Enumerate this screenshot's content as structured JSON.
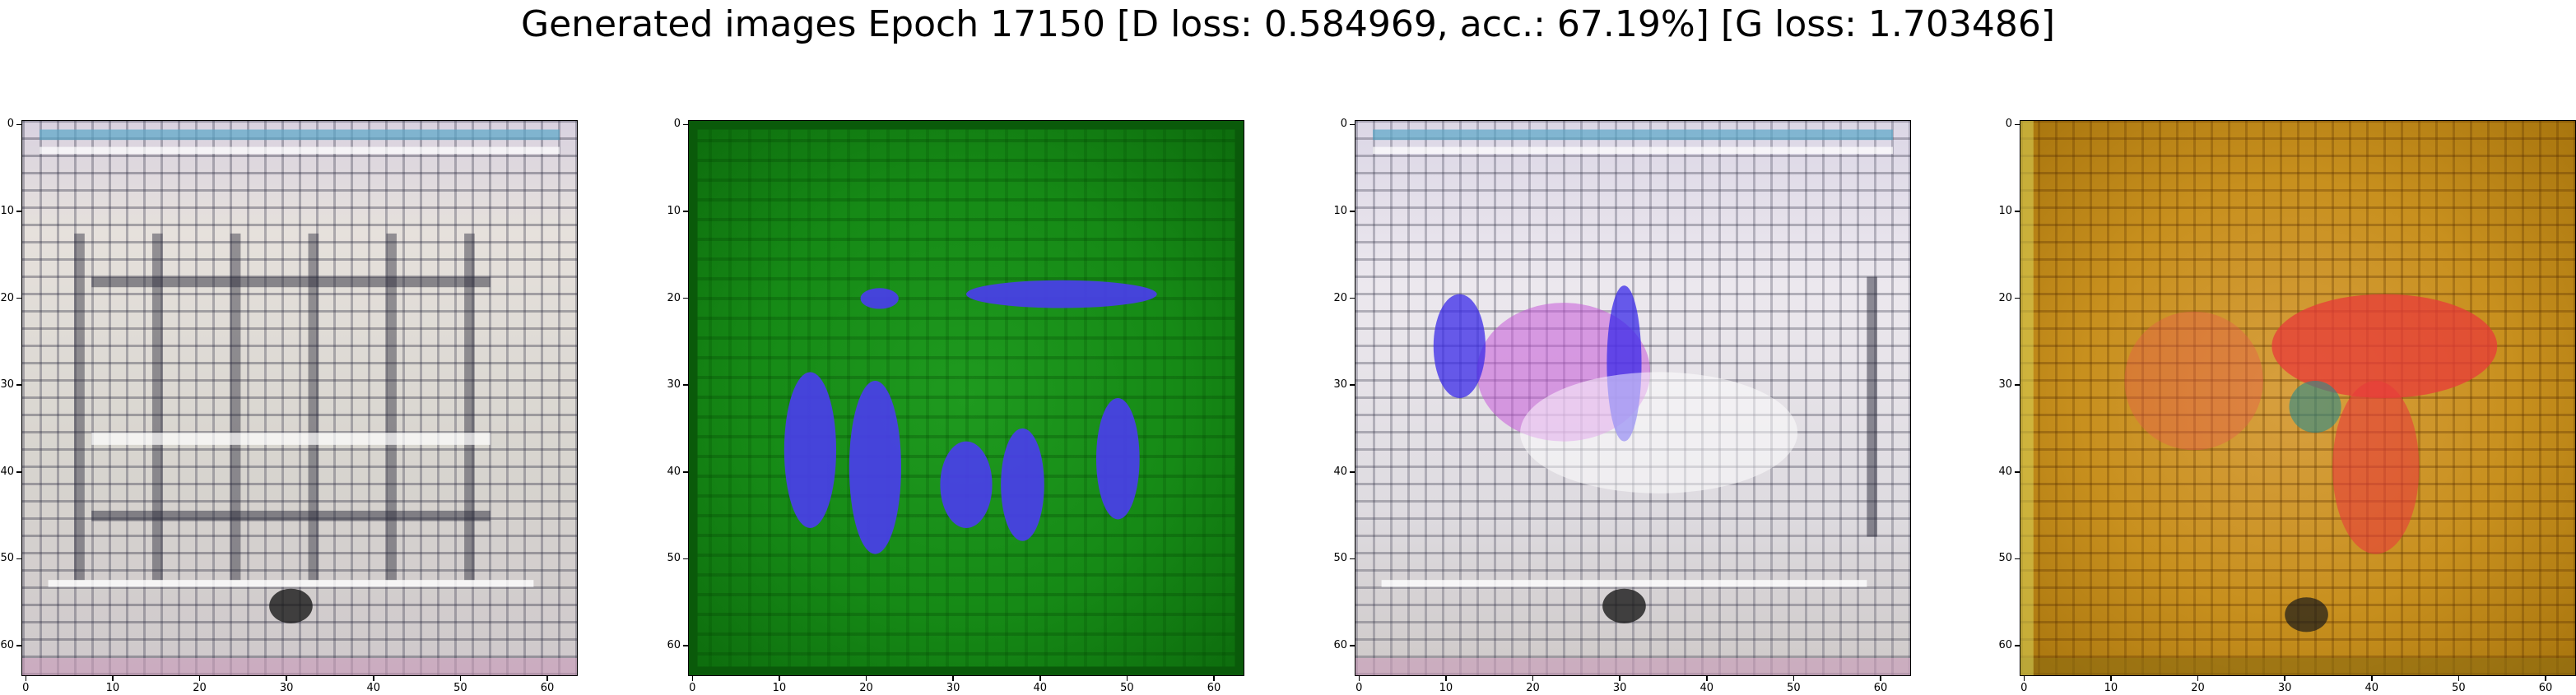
{
  "title": "Generated images Epoch 17150 [D loss: 0.584969, acc.: 67.19%] [G loss: 1.703486]",
  "axis": {
    "ticks": [
      "0",
      "10",
      "20",
      "30",
      "40",
      "50",
      "60"
    ],
    "range": [
      0,
      64
    ]
  },
  "panels": [
    {
      "name": "generated-image-1",
      "dominant_color": "#d8d5cf",
      "description_colors": [
        "#d8d5cf",
        "#2a2a3a"
      ]
    },
    {
      "name": "generated-image-2",
      "dominant_color": "#168a16",
      "description_colors": [
        "#168a16",
        "#4a3cf0"
      ]
    },
    {
      "name": "generated-image-3",
      "dominant_color": "#e0dde2",
      "description_colors": [
        "#e0dde2",
        "#3a2ae8",
        "#c65ad8"
      ]
    },
    {
      "name": "generated-image-4",
      "dominant_color": "#c8901e",
      "description_colors": [
        "#c8901e",
        "#e83a3a"
      ]
    }
  ]
}
